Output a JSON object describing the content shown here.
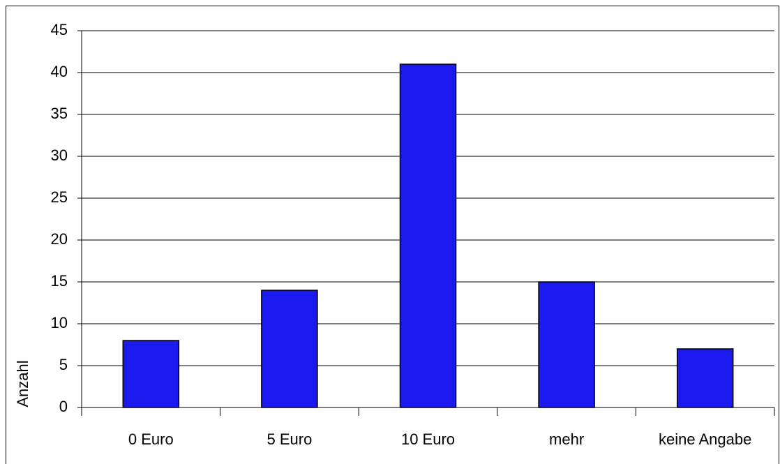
{
  "chart_data": {
    "type": "bar",
    "y_label": "Anzahl",
    "categories": [
      "0 Euro",
      "5 Euro",
      "10 Euro",
      "mehr",
      "keine Angabe"
    ],
    "values": [
      8,
      14,
      41,
      15,
      7
    ],
    "color": "#1a1aee",
    "ylim": [
      0,
      45
    ],
    "yticks": [
      0,
      5,
      10,
      15,
      20,
      25,
      30,
      35,
      40,
      45
    ],
    "grid": true
  }
}
